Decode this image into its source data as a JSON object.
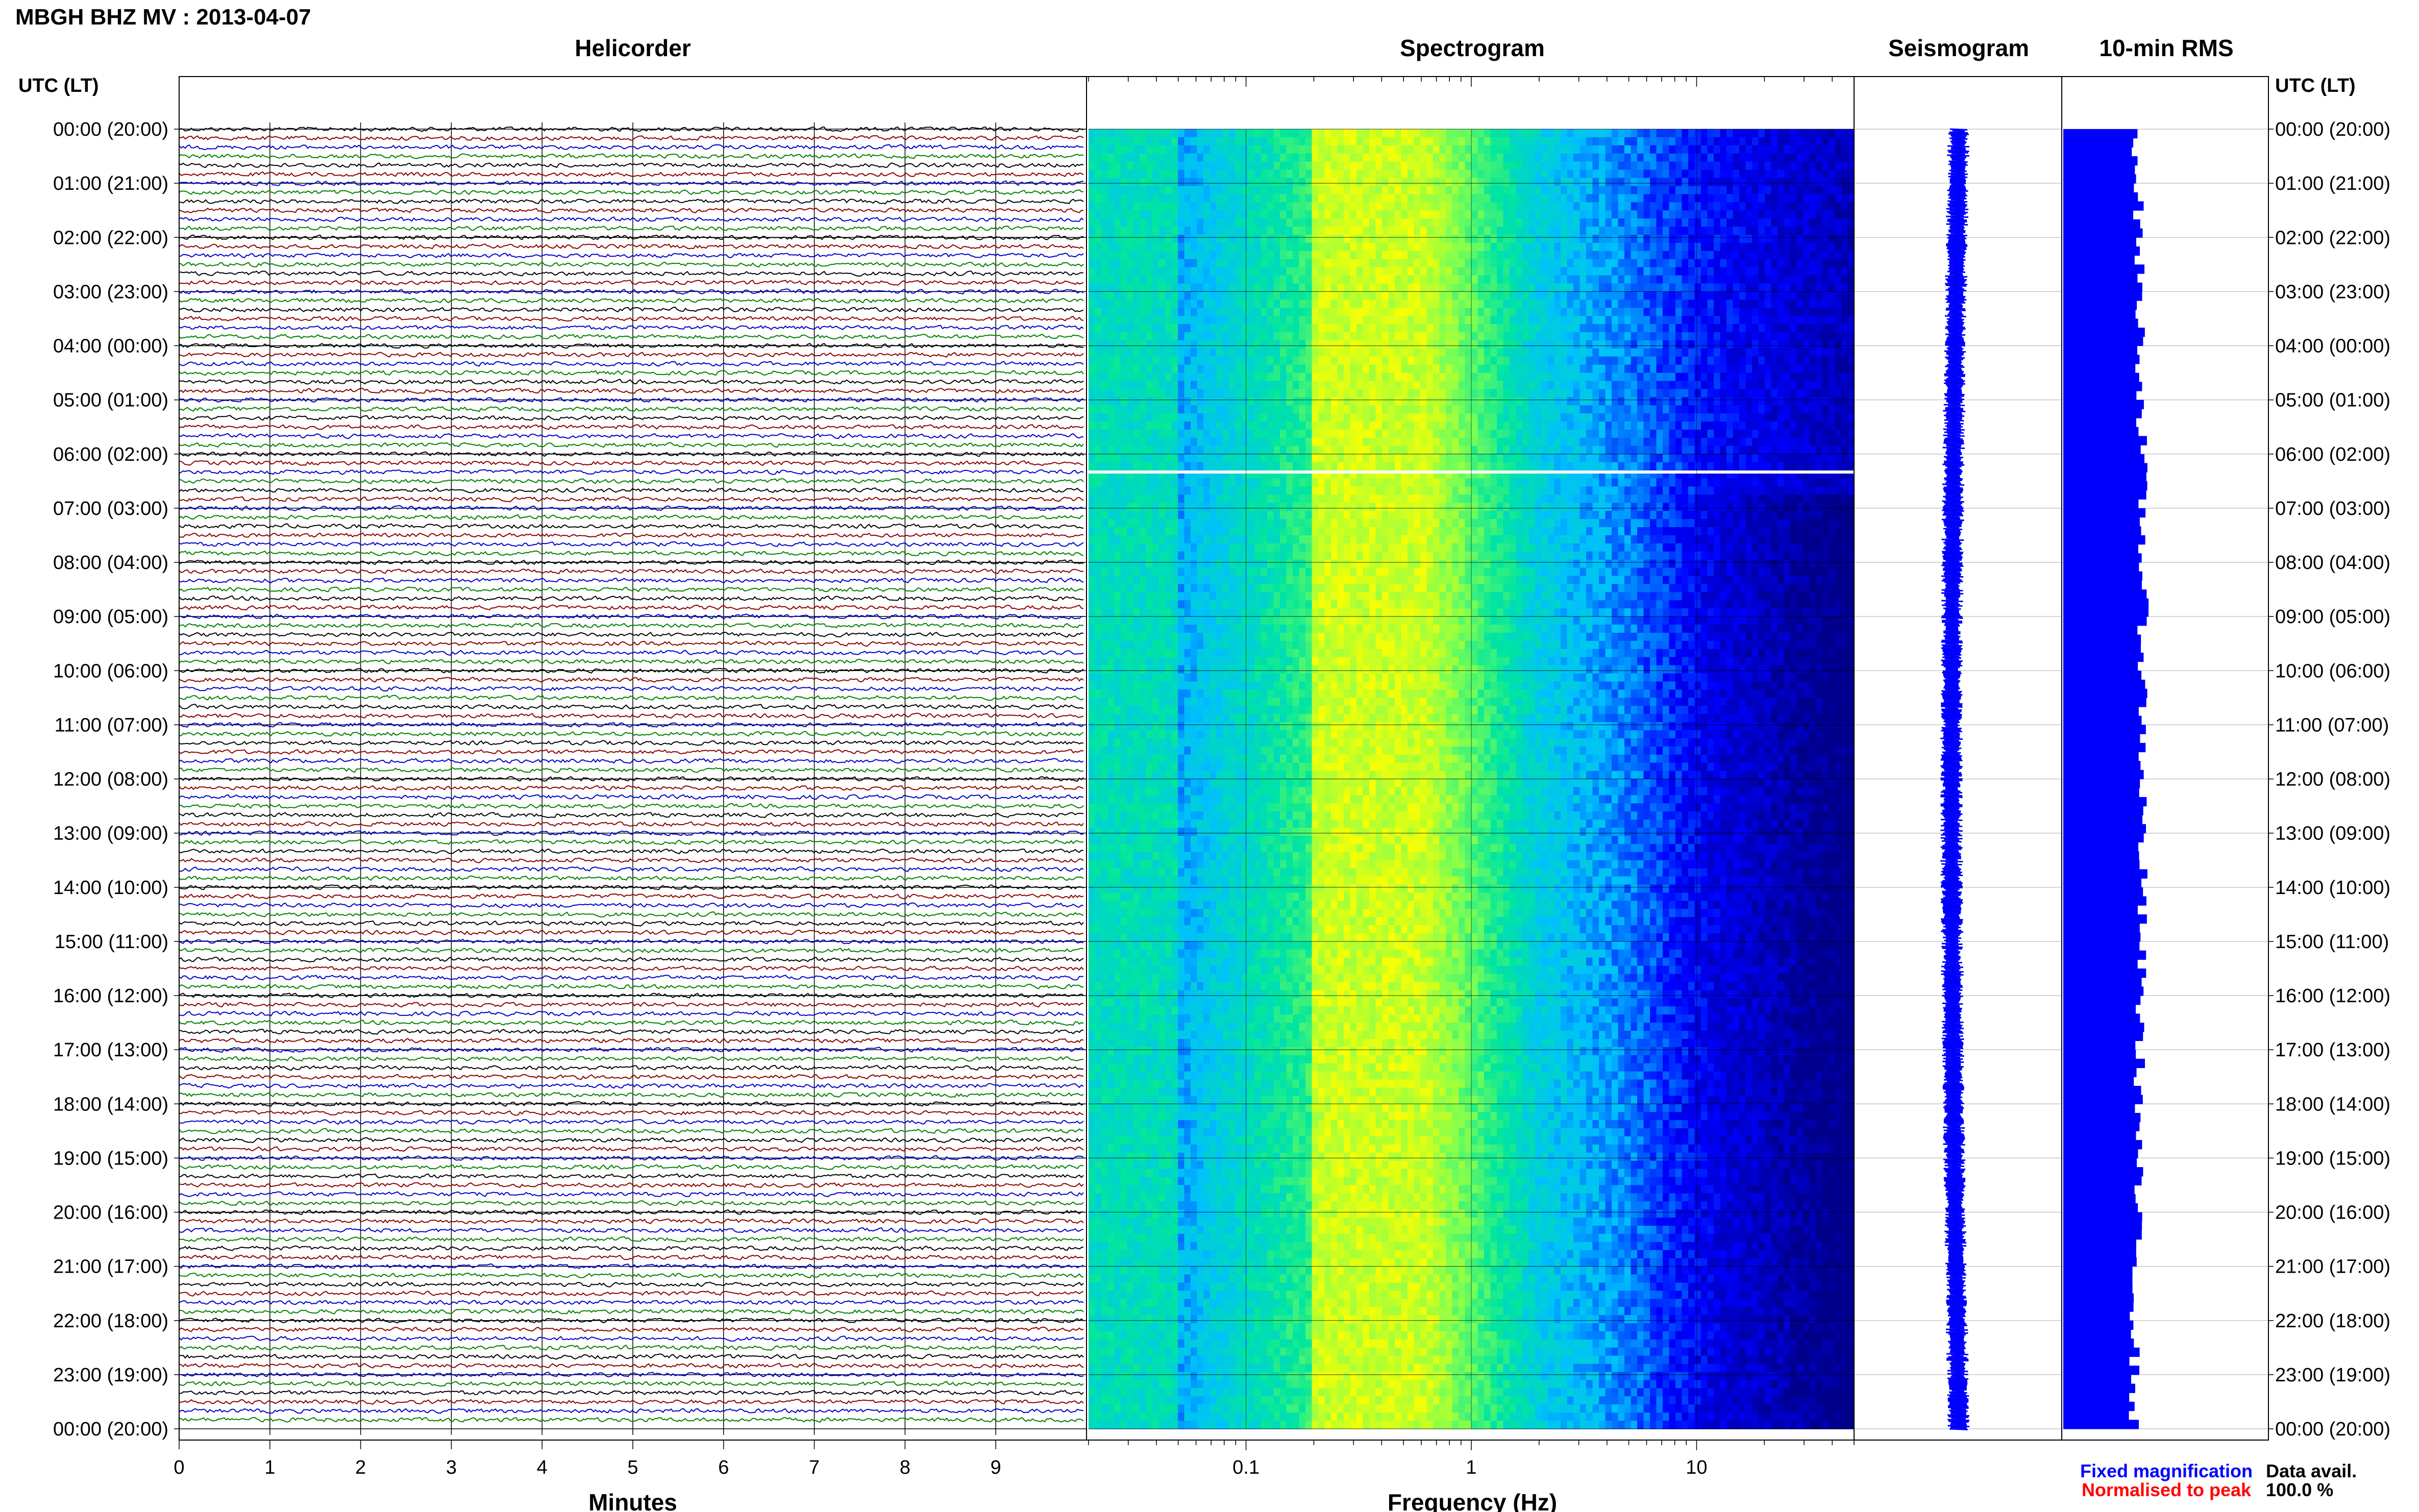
{
  "title": "MBGH BHZ MV : 2013-04-07",
  "panels": {
    "helicorder": "Helicorder",
    "spectrogram": "Spectrogram",
    "seismogram": "Seismogram",
    "rms": "10-min RMS"
  },
  "axis_header_left": "UTC (LT)",
  "axis_header_right": "UTC (LT)",
  "time_labels": [
    "00:00 (20:00)",
    "01:00 (21:00)",
    "02:00 (22:00)",
    "03:00 (23:00)",
    "04:00 (00:00)",
    "05:00 (01:00)",
    "06:00 (02:00)",
    "07:00 (03:00)",
    "08:00 (04:00)",
    "09:00 (05:00)",
    "10:00 (06:00)",
    "11:00 (07:00)",
    "12:00 (08:00)",
    "13:00 (09:00)",
    "14:00 (10:00)",
    "15:00 (11:00)",
    "16:00 (12:00)",
    "17:00 (13:00)",
    "18:00 (14:00)",
    "19:00 (15:00)",
    "20:00 (16:00)",
    "21:00 (17:00)",
    "22:00 (18:00)",
    "23:00 (19:00)",
    "00:00 (20:00)"
  ],
  "legend": {
    "fixed": "Fixed magnification",
    "normalised": "Normalised to peak",
    "fixed_color": "#0000ff",
    "normalised_color": "#ff0000"
  },
  "data_avail": {
    "label": "Data avail.",
    "value": "100.0 %"
  },
  "chart_data": [
    {
      "type": "line",
      "panel": "Helicorder",
      "xlabel": "Minutes",
      "x_ticks": [
        "0",
        "1",
        "2",
        "3",
        "4",
        "5",
        "6",
        "7",
        "8",
        "9"
      ],
      "xlim": [
        0,
        10
      ],
      "ylabel": "UTC (LT)",
      "lines_per_hour": 6,
      "hours": 24,
      "trace_colors": [
        "#000000",
        "#8b0000",
        "#0000cc",
        "#008000"
      ],
      "grid": true
    },
    {
      "type": "heatmap",
      "panel": "Spectrogram",
      "xlabel": "Frequency (Hz)",
      "x_scale": "log",
      "x_ticks": [
        "0.1",
        "1",
        "10"
      ],
      "xlim": [
        0.02,
        50
      ],
      "gap_utc": "06:20",
      "colormap": [
        "#00008b",
        "#0000ff",
        "#00bfff",
        "#00e5a0",
        "#7fff50",
        "#ffff00"
      ]
    },
    {
      "type": "line",
      "panel": "Seismogram",
      "color": "#0000ff",
      "grid": true
    },
    {
      "type": "bar",
      "panel": "10-min RMS",
      "orientation": "horizontal",
      "color": "#0000ff",
      "grid": true
    }
  ]
}
